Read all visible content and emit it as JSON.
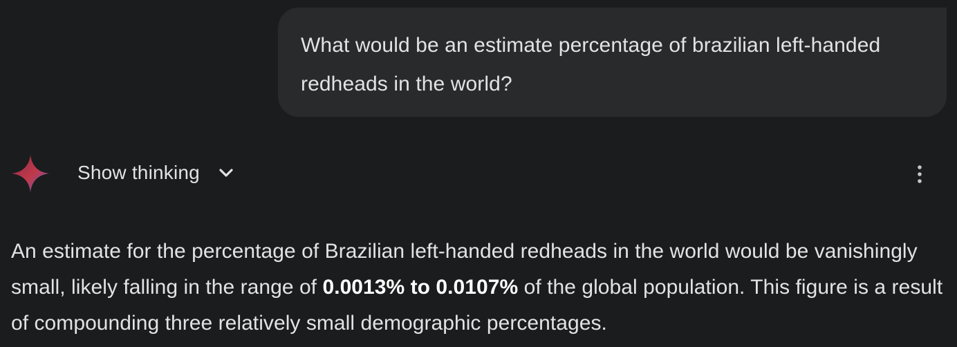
{
  "user_message": {
    "text": "What would be an estimate percentage of brazilian left-handed redheads in the world?"
  },
  "model_header": {
    "icon": "gemini-sparkle-icon",
    "show_thinking_label": "Show thinking",
    "chevron_icon": "chevron-down-icon",
    "more_icon": "more-vertical-icon"
  },
  "response": {
    "part1": "An estimate for the percentage of Brazilian left-handed redheads in the world would be vanishingly small, likely falling in the range of ",
    "bold": "0.0013% to 0.0107%",
    "part2": " of the global population. This figure is a result of compounding three relatively small demographic percentages."
  },
  "colors": {
    "background": "#1b1c1d",
    "bubble": "#282a2c",
    "text": "#e3e3e3",
    "sparkle_primary": "#c0394a",
    "sparkle_secondary": "#5b5fcf"
  }
}
